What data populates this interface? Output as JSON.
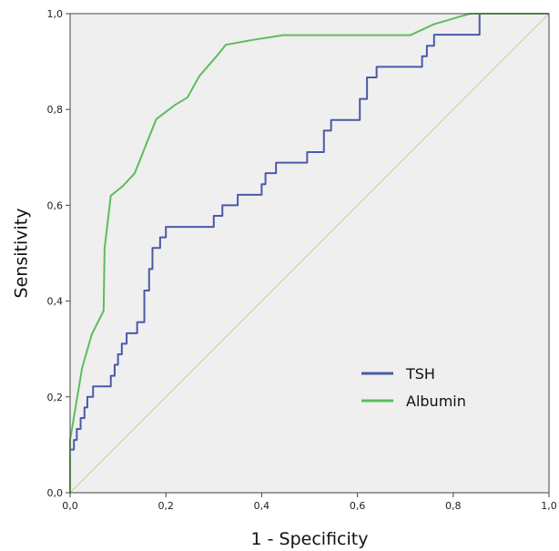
{
  "chart_data": {
    "type": "line",
    "title": "",
    "xlabel": "1 - Specificity",
    "ylabel": "Sensitivity",
    "xlim": [
      0,
      1
    ],
    "ylim": [
      0,
      1
    ],
    "x_ticks": [
      "0,0",
      "0,2",
      "0,4",
      "0,6",
      "0,8",
      "1,0"
    ],
    "y_ticks": [
      "0,0",
      "0,2",
      "0,4",
      "0,6",
      "0,8",
      "1,0"
    ],
    "grid": false,
    "legend_position": "bottom-right",
    "reference_line": {
      "color": "#d6d6a2",
      "points": [
        [
          0,
          0
        ],
        [
          1,
          1
        ]
      ]
    },
    "series": [
      {
        "name": "TSH",
        "color": "#4a5aa8",
        "points": [
          [
            0.0,
            0.0
          ],
          [
            0.0,
            0.09
          ],
          [
            0.008,
            0.09
          ],
          [
            0.008,
            0.11
          ],
          [
            0.014,
            0.11
          ],
          [
            0.014,
            0.133
          ],
          [
            0.022,
            0.133
          ],
          [
            0.022,
            0.156
          ],
          [
            0.03,
            0.156
          ],
          [
            0.03,
            0.178
          ],
          [
            0.036,
            0.178
          ],
          [
            0.036,
            0.2
          ],
          [
            0.048,
            0.2
          ],
          [
            0.048,
            0.222
          ],
          [
            0.085,
            0.222
          ],
          [
            0.085,
            0.244
          ],
          [
            0.093,
            0.244
          ],
          [
            0.093,
            0.267
          ],
          [
            0.1,
            0.267
          ],
          [
            0.1,
            0.289
          ],
          [
            0.108,
            0.289
          ],
          [
            0.108,
            0.311
          ],
          [
            0.118,
            0.311
          ],
          [
            0.118,
            0.333
          ],
          [
            0.14,
            0.333
          ],
          [
            0.14,
            0.356
          ],
          [
            0.155,
            0.356
          ],
          [
            0.155,
            0.422
          ],
          [
            0.165,
            0.422
          ],
          [
            0.165,
            0.467
          ],
          [
            0.172,
            0.467
          ],
          [
            0.172,
            0.511
          ],
          [
            0.188,
            0.511
          ],
          [
            0.188,
            0.533
          ],
          [
            0.2,
            0.533
          ],
          [
            0.2,
            0.555
          ],
          [
            0.3,
            0.555
          ],
          [
            0.3,
            0.578
          ],
          [
            0.318,
            0.578
          ],
          [
            0.318,
            0.6
          ],
          [
            0.35,
            0.6
          ],
          [
            0.35,
            0.622
          ],
          [
            0.4,
            0.622
          ],
          [
            0.4,
            0.644
          ],
          [
            0.408,
            0.644
          ],
          [
            0.408,
            0.667
          ],
          [
            0.43,
            0.667
          ],
          [
            0.43,
            0.689
          ],
          [
            0.495,
            0.689
          ],
          [
            0.495,
            0.711
          ],
          [
            0.53,
            0.711
          ],
          [
            0.53,
            0.756
          ],
          [
            0.545,
            0.756
          ],
          [
            0.545,
            0.778
          ],
          [
            0.605,
            0.778
          ],
          [
            0.605,
            0.822
          ],
          [
            0.62,
            0.822
          ],
          [
            0.62,
            0.867
          ],
          [
            0.64,
            0.867
          ],
          [
            0.64,
            0.889
          ],
          [
            0.735,
            0.889
          ],
          [
            0.735,
            0.911
          ],
          [
            0.745,
            0.911
          ],
          [
            0.745,
            0.933
          ],
          [
            0.76,
            0.933
          ],
          [
            0.76,
            0.956
          ],
          [
            0.855,
            0.956
          ],
          [
            0.855,
            1.0
          ],
          [
            1.0,
            1.0
          ]
        ]
      },
      {
        "name": "Albumin",
        "color": "#5cbd5c",
        "points": [
          [
            0.0,
            0.0
          ],
          [
            0.0,
            0.11
          ],
          [
            0.015,
            0.2
          ],
          [
            0.025,
            0.26
          ],
          [
            0.045,
            0.33
          ],
          [
            0.07,
            0.38
          ],
          [
            0.072,
            0.51
          ],
          [
            0.085,
            0.62
          ],
          [
            0.11,
            0.64
          ],
          [
            0.135,
            0.667
          ],
          [
            0.16,
            0.73
          ],
          [
            0.18,
            0.78
          ],
          [
            0.22,
            0.81
          ],
          [
            0.245,
            0.825
          ],
          [
            0.27,
            0.87
          ],
          [
            0.305,
            0.91
          ],
          [
            0.325,
            0.935
          ],
          [
            0.38,
            0.945
          ],
          [
            0.445,
            0.955
          ],
          [
            0.71,
            0.955
          ],
          [
            0.76,
            0.978
          ],
          [
            0.835,
            1.0
          ],
          [
            1.0,
            1.0
          ]
        ]
      }
    ]
  }
}
